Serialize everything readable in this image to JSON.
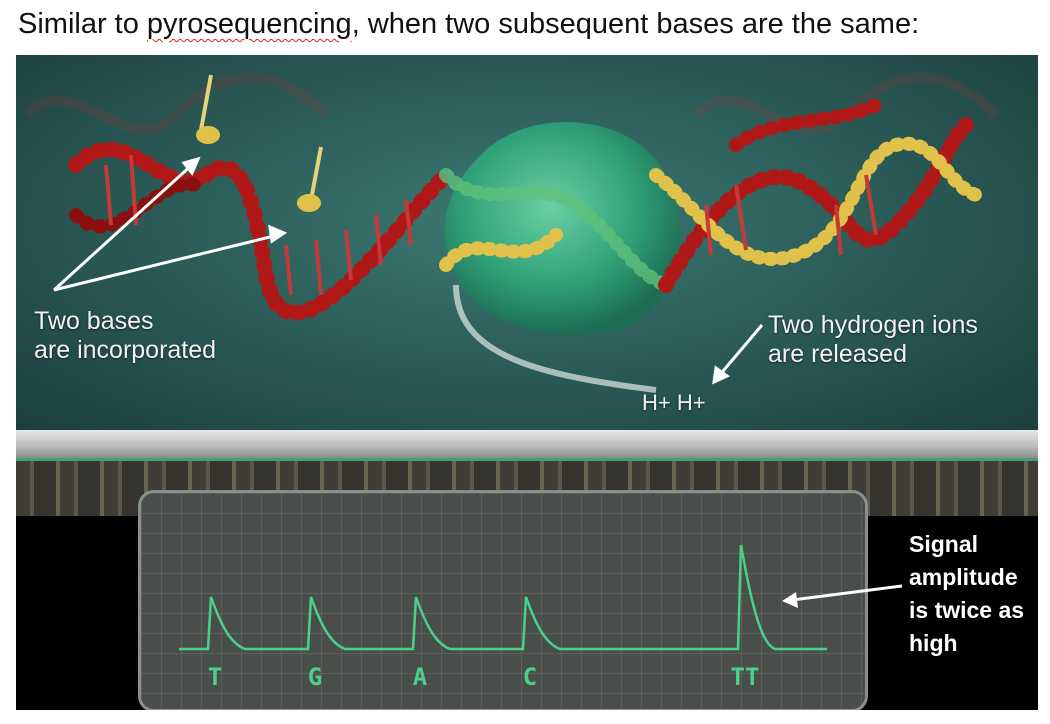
{
  "title": {
    "before": "Similar to ",
    "underlined": "pyrosequencing",
    "after": ", when two subsequent bases are the same:"
  },
  "scene": {
    "left_label": [
      "Two bases",
      "are incorporated"
    ],
    "right_label": [
      "Two hydrogen ions",
      "are released"
    ],
    "ions": "H+ H+"
  },
  "signal": {
    "bases": [
      "T",
      "G",
      "A",
      "C",
      "TT"
    ],
    "relative_amplitudes": [
      1,
      1,
      1,
      1,
      2
    ],
    "trace_color": "#49d08a"
  },
  "annotation": [
    "Signal",
    "amplitude",
    "is twice as",
    "high"
  ],
  "colors": {
    "dna_red": "#b01818",
    "dna_yellow": "#e0c24a",
    "polymerase": "#2fa77a",
    "background": "#2c5e5a"
  }
}
